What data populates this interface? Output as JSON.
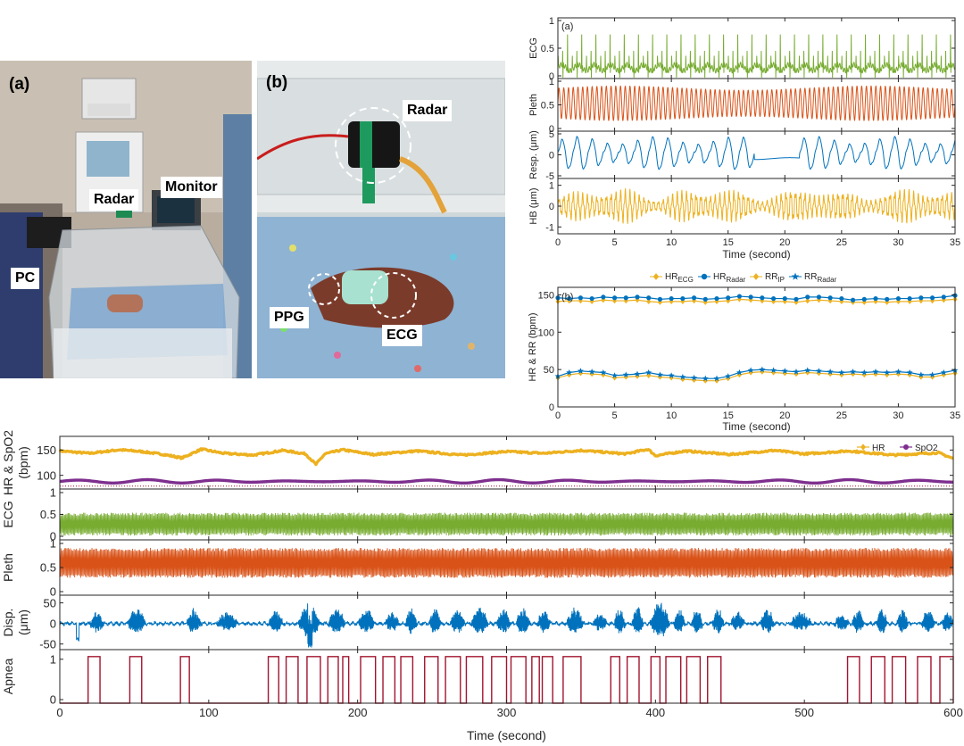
{
  "photos": {
    "a": {
      "label": "(a)",
      "callouts": {
        "radar": "Radar",
        "monitor": "Monitor",
        "pc": "PC"
      }
    },
    "b": {
      "label": "(b)",
      "callouts": {
        "radar": "Radar",
        "ppg": "PPG",
        "ecg": "ECG"
      }
    }
  },
  "chart_data": [
    {
      "id": "top-right-waveforms",
      "type": "line",
      "panel_label": "(a)",
      "xlabel": "Time (second)",
      "xlim": [
        0,
        35
      ],
      "xticks": [
        0,
        5,
        10,
        15,
        20,
        25,
        30,
        35
      ],
      "shared_x": true,
      "subplots": [
        {
          "ylabel": "ECG",
          "ylim": [
            0,
            1
          ],
          "yticks": [
            0,
            0.5,
            1
          ],
          "yticklabels": [
            "0",
            "0.5",
            "1"
          ],
          "color": "#77ac30",
          "signal": {
            "kind": "ecg",
            "rate_hz": 2.4,
            "baseline": 0.18,
            "peak": 0.72
          }
        },
        {
          "ylabel": "Pleth",
          "ylim": [
            0,
            1
          ],
          "yticks": [
            0,
            0.5,
            1
          ],
          "yticklabels": [
            "0",
            "0.5",
            "1"
          ],
          "color": "#d95319",
          "signal": {
            "kind": "pleth",
            "rate_hz": 2.4,
            "low": 0.2,
            "high": 0.85
          }
        },
        {
          "ylabel": "Resp. (μm)",
          "ylim": [
            -5,
            5
          ],
          "yticks": [
            -5,
            0,
            5
          ],
          "yticklabels": [
            "-5",
            "0",
            "5"
          ],
          "color": "#0072bd",
          "signal": {
            "kind": "resp",
            "rate_hz": 0.75,
            "amplitude": 3.3,
            "pause_start": 17.3,
            "pause_end": 21.3
          }
        },
        {
          "ylabel": "HB (μm)",
          "ylim": [
            -1.2,
            1.2
          ],
          "yticks": [
            -1,
            0,
            1
          ],
          "yticklabels": [
            "-1",
            "0",
            "1"
          ],
          "color": "#edb120",
          "signal": {
            "kind": "heartbeat",
            "rate_hz": 2.4,
            "amplitude": 0.6
          }
        }
      ]
    },
    {
      "id": "hr-rr-comparison",
      "type": "line",
      "panel_label": "(b)",
      "xlabel": "Time (second)",
      "ylabel": "HR & RR (bpm)",
      "xlim": [
        0,
        35
      ],
      "ylim": [
        0,
        160
      ],
      "xticks": [
        0,
        5,
        10,
        15,
        20,
        25,
        30,
        35
      ],
      "yticks": [
        0,
        50,
        100,
        150
      ],
      "legend": {
        "placement": "top-outside"
      },
      "x": [
        0,
        1,
        2,
        3,
        4,
        5,
        6,
        7,
        8,
        9,
        10,
        11,
        12,
        13,
        14,
        15,
        16,
        17,
        18,
        19,
        20,
        21,
        22,
        23,
        24,
        25,
        26,
        27,
        28,
        29,
        30,
        31,
        32,
        33,
        34,
        35
      ],
      "series": [
        {
          "name": "HR",
          "subscript": "ECG",
          "color": "#edb120",
          "marker": "diamond",
          "values": [
            141,
            142,
            142,
            141,
            143,
            142,
            142,
            143,
            141,
            140,
            141,
            141,
            142,
            140,
            141,
            142,
            144,
            143,
            142,
            141,
            141,
            140,
            142,
            143,
            142,
            141,
            140,
            140,
            141,
            140,
            141,
            141,
            142,
            142,
            143,
            144
          ]
        },
        {
          "name": "HR",
          "subscript": "Radar",
          "color": "#0072bd",
          "marker": "circle",
          "values": [
            146,
            145,
            146,
            145,
            147,
            146,
            146,
            147,
            146,
            144,
            145,
            145,
            146,
            144,
            145,
            146,
            148,
            147,
            146,
            145,
            145,
            144,
            147,
            147,
            146,
            145,
            143,
            144,
            145,
            144,
            145,
            145,
            146,
            146,
            147,
            149
          ]
        },
        {
          "name": "RR",
          "subscript": "IP",
          "color": "#edb120",
          "marker": "diamond",
          "values": [
            39,
            43,
            45,
            44,
            43,
            39,
            40,
            41,
            42,
            40,
            39,
            37,
            36,
            35,
            35,
            38,
            43,
            46,
            47,
            46,
            45,
            44,
            46,
            45,
            44,
            43,
            44,
            43,
            44,
            43,
            44,
            43,
            40,
            40,
            43,
            45
          ]
        },
        {
          "name": "RR",
          "subscript": "Radar",
          "color": "#0072bd",
          "marker": "star",
          "values": [
            41,
            46,
            48,
            47,
            46,
            42,
            43,
            44,
            46,
            43,
            42,
            40,
            39,
            38,
            38,
            41,
            46,
            49,
            50,
            49,
            48,
            47,
            49,
            48,
            47,
            46,
            47,
            46,
            47,
            46,
            47,
            46,
            43,
            43,
            46,
            49
          ]
        }
      ]
    },
    {
      "id": "bottom-long-recording",
      "type": "line",
      "xlabel": "Time (second)",
      "xlim": [
        0,
        600
      ],
      "xticks": [
        0,
        100,
        200,
        300,
        400,
        500,
        600
      ],
      "shared_x": true,
      "subplots": [
        {
          "ylabel": "HR & SpO2 (bpm)",
          "ylim": [
            80,
            170
          ],
          "yticks": [
            100,
            150
          ],
          "yticklabels": [
            "100",
            "150"
          ],
          "legend": {
            "placement": "top-right"
          },
          "series": [
            {
              "name": "HR",
              "color": "#edb120",
              "marker": "diamond",
              "x": [
                0,
                20,
                40,
                55,
                70,
                82,
                95,
                110,
                130,
                150,
                165,
                172,
                178,
                190,
                210,
                240,
                270,
                300,
                325,
                350,
                380,
                395,
                400,
                420,
                450,
                480,
                500,
                530,
                560,
                590,
                600
              ],
              "values": [
                145,
                141,
                147,
                144,
                139,
                133,
                148,
                141,
                138,
                146,
                140,
                122,
                140,
                147,
                139,
                145,
                138,
                144,
                141,
                146,
                140,
                148,
                137,
                145,
                139,
                146,
                140,
                145,
                138,
                142,
                132
              ]
            },
            {
              "name": "SpO2",
              "color": "#7e2f8e",
              "marker": "circle",
              "x": [
                0,
                600
              ],
              "values": [
                93,
                93
              ],
              "ripple": 3
            }
          ],
          "reference_line": {
            "y": 85,
            "color": "#a2142f",
            "style": "dotted"
          }
        },
        {
          "ylabel": "ECG",
          "ylim": [
            0,
            1
          ],
          "yticks": [
            0,
            0.5,
            1
          ],
          "yticklabels": [
            "0",
            "0.5",
            "1"
          ],
          "color": "#77ac30",
          "signal": {
            "kind": "dense",
            "low": 0.12,
            "high": 0.5
          }
        },
        {
          "ylabel": "Pleth",
          "ylim": [
            0,
            1
          ],
          "yticks": [
            0,
            0.5,
            1
          ],
          "yticklabels": [
            "0",
            "0.5",
            "1"
          ],
          "color": "#d95319",
          "signal": {
            "kind": "dense",
            "low": 0.35,
            "high": 0.82
          }
        },
        {
          "ylabel": "Disp. (μm)",
          "ylim": [
            -55,
            60
          ],
          "yticks": [
            -50,
            0,
            50
          ],
          "yticklabels": [
            "-50",
            "0",
            "50"
          ],
          "color": "#0072bd",
          "signal": {
            "kind": "bursts"
          }
        },
        {
          "ylabel": "Apnea",
          "ylim": [
            0,
            1.15
          ],
          "yticks": [
            0,
            1
          ],
          "yticklabels": [
            "0",
            "1"
          ],
          "color": "#a2142f",
          "step": true,
          "episodes": [
            [
              19,
              27
            ],
            [
              47,
              55
            ],
            [
              81,
              87
            ],
            [
              140,
              147
            ],
            [
              152,
              160
            ],
            [
              166,
              175
            ],
            [
              180,
              187
            ],
            [
              190,
              194
            ],
            [
              202,
              212
            ],
            [
              217,
              225
            ],
            [
              229,
              237
            ],
            [
              245,
              254
            ],
            [
              259,
              269
            ],
            [
              273,
              284
            ],
            [
              290,
              300
            ],
            [
              303,
              313
            ],
            [
              317,
              322
            ],
            [
              324,
              331
            ],
            [
              338,
              350
            ],
            [
              370,
              376
            ],
            [
              381,
              389
            ],
            [
              397,
              403
            ],
            [
              407,
              417
            ],
            [
              421,
              430
            ],
            [
              435,
              444
            ],
            [
              529,
              537
            ],
            [
              545,
              554
            ],
            [
              559,
              568
            ],
            [
              576,
              585
            ],
            [
              591,
              600
            ]
          ]
        }
      ]
    }
  ]
}
